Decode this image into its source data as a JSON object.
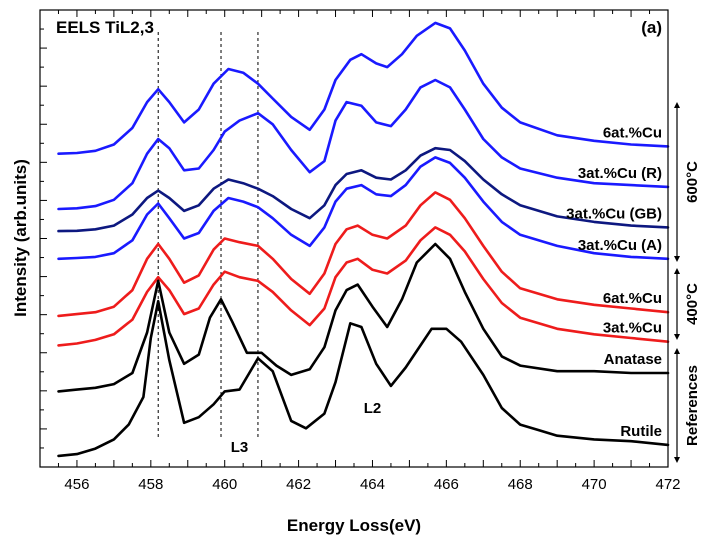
{
  "chart_data": {
    "type": "line",
    "title": "EELS TiL2,3",
    "panel_label": "(a)",
    "xlabel": "Energy Loss(eV)",
    "ylabel": "Intensity (arb.units)",
    "xlim": [
      455,
      472
    ],
    "x_ticks": [
      456,
      458,
      460,
      462,
      464,
      466,
      468,
      470,
      472
    ],
    "y_ticks_labeled": false,
    "grid": false,
    "reference_lines_x": [
      458.2,
      459.9,
      460.9
    ],
    "annotations": [
      {
        "text": "L3",
        "x": 460.4
      },
      {
        "text": "L2",
        "x": 464.0
      }
    ],
    "groups": [
      {
        "label": "600°C",
        "series": [
          "6at.%Cu",
          "3at.%Cu (R)",
          "3at.%Cu (GB)",
          "3at.%Cu (A)"
        ]
      },
      {
        "label": "400°C",
        "series": [
          "6at.%Cu",
          "3at.%Cu"
        ]
      },
      {
        "label": "References",
        "series": [
          "Anatase",
          "Rutile"
        ]
      }
    ],
    "series": [
      {
        "name": "6at.%Cu",
        "color": "#1a1aff",
        "offset": 8.0,
        "x": [
          455.5,
          456,
          456.5,
          457,
          457.5,
          457.9,
          458.2,
          458.5,
          458.9,
          459.3,
          459.7,
          460.1,
          460.5,
          460.9,
          461.3,
          461.8,
          462.3,
          462.7,
          463.0,
          463.4,
          463.7,
          464.1,
          464.4,
          464.8,
          465.2,
          465.7,
          466.1,
          466.5,
          467,
          467.5,
          468,
          469,
          470,
          471,
          472
        ],
        "y": [
          0.2,
          0.22,
          0.28,
          0.45,
          0.9,
          1.6,
          1.95,
          1.6,
          1.05,
          1.4,
          2.1,
          2.5,
          2.4,
          2.1,
          1.7,
          1.2,
          0.85,
          1.4,
          2.2,
          2.75,
          2.9,
          2.65,
          2.55,
          2.9,
          3.4,
          3.75,
          3.6,
          3.0,
          2.1,
          1.45,
          1.05,
          0.7,
          0.55,
          0.45,
          0.4
        ]
      },
      {
        "name": "3at.%Cu (R)",
        "color": "#1a1aff",
        "offset": 6.6,
        "x": [
          455.5,
          456,
          456.5,
          457,
          457.5,
          457.9,
          458.2,
          458.5,
          458.9,
          459.3,
          459.7,
          460.0,
          460.4,
          460.9,
          461.3,
          461.8,
          462.3,
          462.7,
          463.0,
          463.3,
          463.7,
          464.1,
          464.5,
          464.9,
          465.3,
          465.7,
          466.1,
          466.5,
          467,
          467.5,
          468,
          469,
          470,
          471,
          472
        ],
        "y": [
          0.1,
          0.12,
          0.18,
          0.35,
          0.8,
          1.6,
          2.0,
          1.75,
          1.15,
          1.2,
          1.7,
          2.2,
          2.5,
          2.7,
          2.4,
          1.7,
          1.1,
          1.4,
          2.5,
          3.0,
          2.9,
          2.45,
          2.35,
          2.8,
          3.4,
          3.6,
          3.4,
          2.8,
          2.0,
          1.5,
          1.2,
          0.95,
          0.8,
          0.75,
          0.7
        ]
      },
      {
        "name": "3at.%Cu (GB)",
        "color": "#0d1880",
        "offset": 5.75,
        "x": [
          455.5,
          456,
          456.5,
          457,
          457.5,
          457.9,
          458.2,
          458.5,
          458.9,
          459.3,
          459.7,
          460.1,
          460.5,
          460.9,
          461.3,
          461.8,
          462.3,
          462.7,
          463.0,
          463.3,
          463.7,
          464.1,
          464.5,
          464.9,
          465.3,
          465.7,
          466.1,
          466.5,
          467,
          467.5,
          468,
          469,
          470,
          471,
          472
        ],
        "y": [
          0.35,
          0.36,
          0.4,
          0.5,
          0.8,
          1.25,
          1.45,
          1.25,
          0.9,
          1.05,
          1.5,
          1.75,
          1.65,
          1.5,
          1.3,
          0.95,
          0.7,
          1.05,
          1.6,
          1.9,
          2.0,
          1.8,
          1.75,
          2.0,
          2.4,
          2.6,
          2.55,
          2.25,
          1.75,
          1.35,
          1.05,
          0.75,
          0.6,
          0.5,
          0.45
        ]
      },
      {
        "name": "3at.%Cu (A)",
        "color": "#1a1aff",
        "offset": 4.95,
        "x": [
          455.5,
          456,
          456.5,
          457,
          457.5,
          457.9,
          458.2,
          458.5,
          458.9,
          459.3,
          459.7,
          460.1,
          460.5,
          460.9,
          461.3,
          461.8,
          462.3,
          462.7,
          463.0,
          463.3,
          463.7,
          464.1,
          464.5,
          464.9,
          465.3,
          465.7,
          466.1,
          466.5,
          467,
          467.5,
          468,
          469,
          470,
          471,
          472
        ],
        "y": [
          0.4,
          0.42,
          0.45,
          0.55,
          0.9,
          1.6,
          1.9,
          1.5,
          0.95,
          1.1,
          1.7,
          2.05,
          1.95,
          1.8,
          1.5,
          1.05,
          0.75,
          1.25,
          1.95,
          2.3,
          2.4,
          2.15,
          2.1,
          2.4,
          2.9,
          3.15,
          3.0,
          2.6,
          1.95,
          1.4,
          1.05,
          0.75,
          0.55,
          0.45,
          0.4
        ]
      },
      {
        "name": "6at.%Cu",
        "color": "#ee1c1c",
        "offset": 3.75,
        "x": [
          455.5,
          456,
          456.5,
          457,
          457.5,
          457.9,
          458.2,
          458.5,
          458.9,
          459.3,
          459.7,
          460.0,
          460.4,
          460.9,
          461.3,
          461.8,
          462.3,
          462.7,
          463.0,
          463.3,
          463.6,
          464.0,
          464.4,
          464.9,
          465.3,
          465.7,
          466.1,
          466.5,
          467,
          467.5,
          468,
          469,
          470,
          471,
          472
        ],
        "y": [
          0.05,
          0.1,
          0.15,
          0.3,
          0.75,
          1.6,
          2.0,
          1.6,
          0.95,
          1.15,
          1.85,
          2.15,
          2.05,
          1.95,
          1.6,
          1.05,
          0.65,
          1.2,
          2.0,
          2.4,
          2.5,
          2.25,
          2.15,
          2.5,
          3.05,
          3.4,
          3.2,
          2.7,
          1.95,
          1.25,
          0.8,
          0.5,
          0.35,
          0.25,
          0.15
        ]
      },
      {
        "name": "3at.%Cu",
        "color": "#ee1c1c",
        "offset": 3.0,
        "x": [
          455.5,
          456,
          456.5,
          457,
          457.5,
          457.9,
          458.2,
          458.5,
          458.9,
          459.3,
          459.7,
          460.0,
          460.4,
          460.9,
          461.3,
          461.8,
          462.3,
          462.7,
          463.0,
          463.3,
          463.6,
          464.0,
          464.4,
          464.9,
          465.3,
          465.7,
          466.1,
          466.5,
          467,
          467.5,
          468,
          469,
          470,
          471,
          472
        ],
        "y": [
          0.0,
          0.05,
          0.15,
          0.3,
          0.7,
          1.45,
          1.85,
          1.5,
          0.85,
          1.0,
          1.65,
          2.0,
          1.85,
          1.75,
          1.45,
          0.95,
          0.55,
          1.0,
          1.85,
          2.25,
          2.35,
          2.05,
          1.95,
          2.3,
          2.85,
          3.2,
          3.0,
          2.55,
          1.8,
          1.15,
          0.75,
          0.45,
          0.3,
          0.2,
          0.1
        ]
      },
      {
        "name": "Anatase",
        "color": "#000000",
        "offset": 1.75,
        "x": [
          455.5,
          456,
          456.5,
          457,
          457.5,
          457.9,
          458.2,
          458.5,
          458.9,
          459.3,
          459.6,
          459.9,
          460.2,
          460.6,
          461.0,
          461.4,
          461.8,
          462.3,
          462.7,
          463.0,
          463.3,
          463.6,
          464.0,
          464.4,
          464.8,
          465.2,
          465.7,
          466.1,
          466.5,
          467,
          467.5,
          468,
          469,
          470,
          471,
          472
        ],
        "y": [
          0.0,
          0.05,
          0.1,
          0.2,
          0.5,
          1.6,
          3.0,
          1.6,
          0.75,
          1.0,
          2.0,
          2.5,
          1.9,
          1.05,
          1.05,
          0.7,
          0.45,
          0.6,
          1.2,
          2.2,
          2.75,
          2.9,
          2.3,
          1.75,
          2.5,
          3.5,
          4.0,
          3.6,
          2.7,
          1.7,
          0.95,
          0.7,
          0.55,
          0.55,
          0.5,
          0.5
        ]
      },
      {
        "name": "Rutile",
        "color": "#000000",
        "offset": 0.0,
        "x": [
          455.5,
          456,
          456.5,
          457,
          457.4,
          457.8,
          458.0,
          458.2,
          458.5,
          458.9,
          459.3,
          459.7,
          460.0,
          460.4,
          460.9,
          461.3,
          461.8,
          462.2,
          462.7,
          463.0,
          463.4,
          463.7,
          464.1,
          464.5,
          464.9,
          465.3,
          465.6,
          466.0,
          466.4,
          467,
          467.5,
          468,
          468.5,
          469,
          470,
          471,
          472
        ],
        "y": [
          0.0,
          0.05,
          0.2,
          0.45,
          0.85,
          1.6,
          3.2,
          4.2,
          2.6,
          0.9,
          1.05,
          1.4,
          1.75,
          1.8,
          2.65,
          2.3,
          0.95,
          0.75,
          1.15,
          2.0,
          3.6,
          3.5,
          2.5,
          1.9,
          2.4,
          3.0,
          3.45,
          3.45,
          3.1,
          2.2,
          1.3,
          0.85,
          0.7,
          0.55,
          0.45,
          0.4,
          0.3
        ]
      }
    ]
  }
}
